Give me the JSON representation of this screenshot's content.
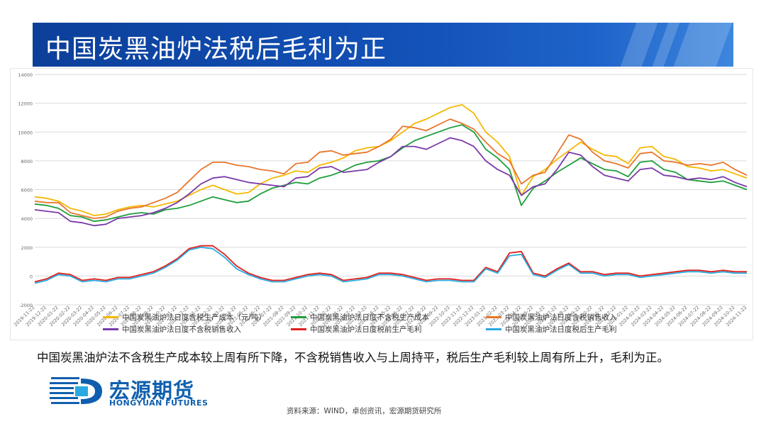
{
  "slide": {
    "title": "中国炭黑油炉法税后毛利为正",
    "description": "中国炭黑油炉法不含税生产成本较上周有所下降，不含税销售收入与上周持平，税后生产毛利较上周有所上升，毛利为正。",
    "source": "资料来源：WIND，卓创资讯，宏源期货研究所",
    "logo": {
      "cn": "宏源期货",
      "en": "HONGYUAN FUTURES"
    },
    "banner_color": "#1352b8"
  },
  "chart_data": {
    "type": "line",
    "title": "",
    "xlabel": "",
    "ylabel": "",
    "ylim": [
      -2000,
      14000
    ],
    "yticks": [
      "-2000",
      "0",
      "2000",
      "4000",
      "6000",
      "8000",
      "10000",
      "12000",
      "14000"
    ],
    "x": [
      "2019-11-22",
      "2019-12-22",
      "2020-01-22",
      "2020-02-22",
      "2020-03-22",
      "2020-04-22",
      "2020-05-22",
      "2020-06-22",
      "2020-07-22",
      "2020-08-22",
      "2020-09-22",
      "2020-10-22",
      "2020-11-22",
      "2020-12-22",
      "2021-01-22",
      "2021-02-22",
      "2021-03-22",
      "2021-04-22",
      "2021-05-22",
      "2021-06-22",
      "2021-07-22",
      "2021-08-22",
      "2021-09-22",
      "2021-10-22",
      "2021-11-22",
      "2021-12-22",
      "2022-01-22",
      "2022-02-22",
      "2022-03-22",
      "2022-04-22",
      "2022-05-22",
      "2022-06-22",
      "2022-07-22",
      "2022-08-22",
      "2022-09-22",
      "2022-10-22",
      "2022-11-22",
      "2022-12-22",
      "2023-01-22",
      "2023-02-22",
      "2023-03-22",
      "2023-04-22",
      "2023-05-22",
      "2023-06-22",
      "2023-07-22",
      "2023-08-22",
      "2023-09-22",
      "2023-10-22",
      "2023-11-22",
      "2023-12-22",
      "2024-01-22",
      "2024-02-22",
      "2024-03-22",
      "2024-04-22",
      "2024-05-22",
      "2024-06-22",
      "2024-07-22",
      "2024-08-22",
      "2024-09-22",
      "2024-10-22",
      "2024-11-22"
    ],
    "series": [
      {
        "name": "中国炭黑油炉法日度含税生产成本（元/吨）",
        "color": "#f5b800",
        "values": [
          5500,
          5400,
          5200,
          4700,
          4500,
          4200,
          4300,
          4600,
          4800,
          4900,
          4800,
          5000,
          5200,
          5600,
          6000,
          6300,
          6000,
          5700,
          5800,
          6400,
          6800,
          7000,
          7300,
          7200,
          7700,
          7900,
          8200,
          8700,
          8900,
          9000,
          9400,
          10000,
          10600,
          10900,
          11300,
          11700,
          11900,
          11300,
          10000,
          9300,
          8300,
          5600,
          6900,
          7400,
          8100,
          8700,
          9300,
          8800,
          8400,
          8300,
          7800,
          8900,
          9000,
          8300,
          8100,
          7600,
          7500,
          7300,
          7400,
          7100,
          6800
        ]
      },
      {
        "name": "中国炭黑油炉法日度不含税生产成本",
        "color": "#1f9e3c",
        "values": [
          5000,
          4900,
          4700,
          4200,
          4100,
          3800,
          3900,
          4100,
          4300,
          4400,
          4300,
          4600,
          4700,
          4900,
          5200,
          5500,
          5300,
          5100,
          5200,
          5700,
          6100,
          6300,
          6500,
          6400,
          6800,
          7000,
          7300,
          7700,
          7900,
          8000,
          8300,
          8900,
          9400,
          9700,
          10000,
          10300,
          10500,
          10000,
          8800,
          8200,
          7400,
          4900,
          6100,
          6600,
          7200,
          7700,
          8200,
          7800,
          7400,
          7300,
          6900,
          7900,
          8000,
          7400,
          7200,
          6700,
          6600,
          6500,
          6600,
          6300,
          6000
        ]
      },
      {
        "name": "中国炭黑油炉法日度含税销售收入",
        "color": "#e8762b",
        "values": [
          5200,
          5100,
          5100,
          4400,
          4200,
          4000,
          4100,
          4500,
          4700,
          4800,
          5100,
          5400,
          5800,
          6600,
          7400,
          7900,
          7900,
          7700,
          7600,
          7400,
          7300,
          7100,
          7800,
          7900,
          8600,
          8700,
          8400,
          8500,
          8600,
          9000,
          9500,
          10400,
          10300,
          10100,
          10500,
          10900,
          10600,
          10200,
          9300,
          8500,
          8000,
          6400,
          7000,
          7200,
          8500,
          9800,
          9500,
          8600,
          8000,
          7800,
          7500,
          8500,
          8600,
          8000,
          7900,
          7700,
          7800,
          7700,
          7900,
          7400,
          7000
        ]
      },
      {
        "name": "中国炭黑油炉法日度不含税销售收入",
        "color": "#7a3aa8",
        "values": [
          4600,
          4500,
          4400,
          3800,
          3700,
          3500,
          3600,
          4000,
          4100,
          4200,
          4400,
          4700,
          5100,
          5700,
          6400,
          6800,
          6900,
          6700,
          6500,
          6400,
          6300,
          6200,
          6800,
          6900,
          7500,
          7600,
          7200,
          7300,
          7400,
          7900,
          8300,
          9000,
          9000,
          8800,
          9200,
          9600,
          9400,
          9000,
          8000,
          7400,
          7000,
          5600,
          6200,
          6400,
          7400,
          8600,
          8400,
          7600,
          7000,
          6800,
          6600,
          7400,
          7500,
          7000,
          6900,
          6700,
          6800,
          6700,
          6900,
          6500,
          6200
        ]
      },
      {
        "name": "中国炭黑油炉法日度税前生产毛利",
        "color": "#e0201c",
        "values": [
          -400,
          -200,
          200,
          100,
          -300,
          -200,
          -300,
          -100,
          -100,
          100,
          300,
          700,
          1200,
          1900,
          2100,
          2100,
          1500,
          700,
          200,
          -100,
          -300,
          -300,
          -100,
          100,
          200,
          100,
          -300,
          -200,
          -100,
          200,
          200,
          100,
          -100,
          -300,
          -200,
          -200,
          -300,
          -300,
          600,
          300,
          1600,
          1700,
          200,
          0,
          500,
          900,
          300,
          300,
          100,
          200,
          200,
          0,
          100,
          200,
          300,
          400,
          400,
          300,
          400,
          300,
          300
        ]
      },
      {
        "name": "中国炭黑油炉法日度税后生产毛利",
        "color": "#2aa9e0",
        "values": [
          -500,
          -300,
          100,
          0,
          -400,
          -300,
          -400,
          -200,
          -200,
          0,
          200,
          600,
          1100,
          1800,
          2000,
          1900,
          1300,
          500,
          100,
          -200,
          -400,
          -400,
          -200,
          0,
          100,
          0,
          -400,
          -300,
          -200,
          100,
          100,
          0,
          -200,
          -400,
          -300,
          -300,
          -400,
          -400,
          500,
          200,
          1400,
          1500,
          100,
          -100,
          400,
          800,
          200,
          200,
          0,
          100,
          100,
          -100,
          0,
          100,
          200,
          300,
          300,
          200,
          300,
          200,
          200
        ]
      }
    ],
    "grid": true,
    "legend": "bottom"
  }
}
